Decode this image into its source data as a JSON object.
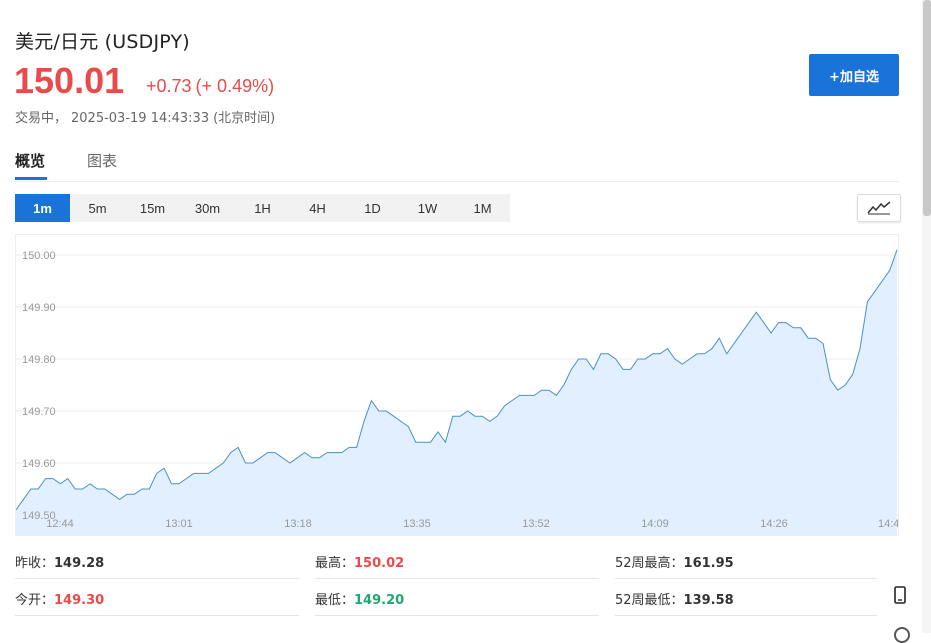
{
  "header": {
    "title": "美元/日元 (USDJPY)",
    "price": "150.01",
    "change": "+0.73",
    "change_pct": "(+ 0.49%)",
    "status": "交易中，",
    "datetime": "2025-03-19 14:43:33",
    "timezone": "(北京时间)",
    "add_watch_label": "+加自选"
  },
  "tabs": [
    {
      "label": "概览",
      "active": true
    },
    {
      "label": "图表",
      "active": false
    }
  ],
  "periods": [
    {
      "label": "1m",
      "active": true
    },
    {
      "label": "5m",
      "active": false
    },
    {
      "label": "15m",
      "active": false
    },
    {
      "label": "30m",
      "active": false
    },
    {
      "label": "1H",
      "active": false
    },
    {
      "label": "4H",
      "active": false
    },
    {
      "label": "1D",
      "active": false
    },
    {
      "label": "1W",
      "active": false
    },
    {
      "label": "1M",
      "active": false
    }
  ],
  "chart_data": {
    "type": "area",
    "title": "",
    "xlabel": "",
    "ylabel": "",
    "ylim": [
      149.5,
      150.05
    ],
    "y_ticks": [
      "150.00",
      "149.90",
      "149.80",
      "149.70",
      "149.60",
      "149.50"
    ],
    "x_ticks": [
      "12:44",
      "13:01",
      "13:18",
      "13:35",
      "13:52",
      "14:09",
      "14:26",
      "14:4"
    ],
    "line_color": "#4a90c8",
    "fill_color": "#e1efff",
    "grid": true,
    "x": [
      "12:44",
      "12:45",
      "12:46",
      "12:47",
      "12:48",
      "12:49",
      "12:50",
      "12:51",
      "12:52",
      "12:53",
      "12:54",
      "12:55",
      "12:56",
      "12:57",
      "12:58",
      "12:59",
      "13:00",
      "13:01",
      "13:02",
      "13:03",
      "13:04",
      "13:05",
      "13:06",
      "13:07",
      "13:08",
      "13:09",
      "13:10",
      "13:11",
      "13:12",
      "13:13",
      "13:14",
      "13:15",
      "13:16",
      "13:17",
      "13:18",
      "13:19",
      "13:20",
      "13:21",
      "13:22",
      "13:23",
      "13:24",
      "13:25",
      "13:26",
      "13:27",
      "13:28",
      "13:29",
      "13:30",
      "13:31",
      "13:32",
      "13:33",
      "13:34",
      "13:35",
      "13:36",
      "13:37",
      "13:38",
      "13:39",
      "13:40",
      "13:41",
      "13:42",
      "13:43",
      "13:44",
      "13:45",
      "13:46",
      "13:47",
      "13:48",
      "13:49",
      "13:50",
      "13:51",
      "13:52",
      "13:53",
      "13:54",
      "13:55",
      "13:56",
      "13:57",
      "13:58",
      "13:59",
      "14:00",
      "14:01",
      "14:02",
      "14:03",
      "14:04",
      "14:05",
      "14:06",
      "14:07",
      "14:08",
      "14:09",
      "14:10",
      "14:11",
      "14:12",
      "14:13",
      "14:14",
      "14:15",
      "14:16",
      "14:17",
      "14:18",
      "14:19",
      "14:20",
      "14:21",
      "14:22",
      "14:23",
      "14:24",
      "14:25",
      "14:26",
      "14:27",
      "14:28",
      "14:29",
      "14:30",
      "14:31",
      "14:32",
      "14:33",
      "14:34",
      "14:35",
      "14:36",
      "14:37",
      "14:38",
      "14:39",
      "14:40",
      "14:41",
      "14:42",
      "14:43"
    ],
    "values": [
      149.51,
      149.53,
      149.55,
      149.55,
      149.57,
      149.57,
      149.56,
      149.57,
      149.55,
      149.55,
      149.56,
      149.55,
      149.55,
      149.54,
      149.53,
      149.54,
      149.54,
      149.55,
      149.55,
      149.58,
      149.59,
      149.56,
      149.56,
      149.57,
      149.58,
      149.58,
      149.58,
      149.59,
      149.6,
      149.62,
      149.63,
      149.6,
      149.6,
      149.61,
      149.62,
      149.62,
      149.61,
      149.6,
      149.61,
      149.62,
      149.61,
      149.61,
      149.62,
      149.62,
      149.62,
      149.63,
      149.63,
      149.68,
      149.72,
      149.7,
      149.7,
      149.69,
      149.68,
      149.67,
      149.64,
      149.64,
      149.64,
      149.66,
      149.64,
      149.69,
      149.69,
      149.7,
      149.69,
      149.69,
      149.68,
      149.69,
      149.71,
      149.72,
      149.73,
      149.73,
      149.73,
      149.74,
      149.74,
      149.73,
      149.75,
      149.78,
      149.8,
      149.8,
      149.78,
      149.81,
      149.81,
      149.8,
      149.78,
      149.78,
      149.8,
      149.8,
      149.81,
      149.81,
      149.82,
      149.8,
      149.79,
      149.8,
      149.81,
      149.81,
      149.82,
      149.84,
      149.81,
      149.83,
      149.85,
      149.87,
      149.89,
      149.87,
      149.85,
      149.87,
      149.87,
      149.86,
      149.86,
      149.84,
      149.84,
      149.83,
      149.76,
      149.74,
      149.75,
      149.77,
      149.82,
      149.91,
      149.93,
      149.95,
      149.97,
      150.01
    ]
  },
  "stats": {
    "prev_close_label": "昨收：",
    "prev_close_value": "149.28",
    "high_label": "最高：",
    "high_value": "150.02",
    "w52_high_label": "52周最高：",
    "w52_high_value": "161.95",
    "open_label": "今开：",
    "open_value": "149.30",
    "low_label": "最低：",
    "low_value": "149.20",
    "w52_low_label": "52周最低：",
    "w52_low_value": "139.58"
  },
  "colors": {
    "accent": "#1a73d9",
    "up": "#e94b4b",
    "down": "#20a86f"
  }
}
